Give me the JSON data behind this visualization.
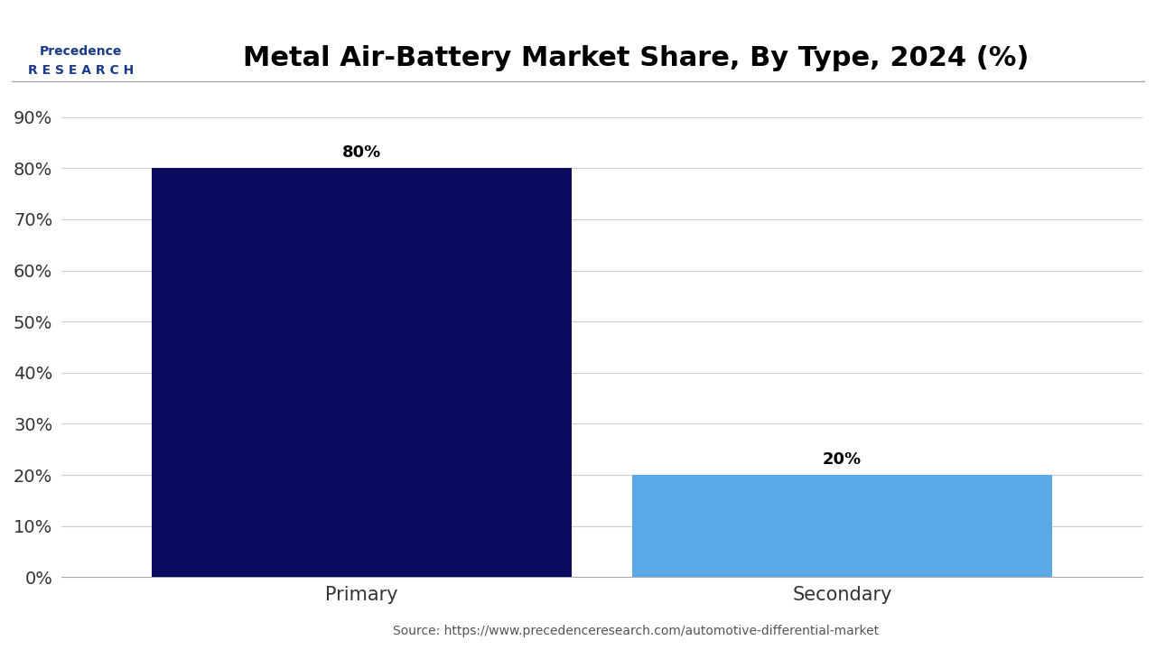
{
  "title": "Metal Air-Battery Market Share, By Type, 2024 (%)",
  "categories": [
    "Primary",
    "Secondary"
  ],
  "values": [
    80,
    20
  ],
  "bar_colors": [
    "#0a0a5e",
    "#5aa9e6"
  ],
  "ylabel": "",
  "yticks": [
    0,
    10,
    20,
    30,
    40,
    50,
    60,
    70,
    80,
    90
  ],
  "ytick_labels": [
    "0%",
    "10%",
    "20%",
    "30%",
    "40%",
    "50%",
    "60%",
    "70%",
    "80%",
    "90%"
  ],
  "ylim": [
    0,
    95
  ],
  "source_text": "Source: https://www.precedenceresearch.com/automotive-differential-market",
  "background_color": "#ffffff",
  "title_fontsize": 22,
  "label_fontsize": 14,
  "bar_label_fontsize": 13,
  "source_fontsize": 10,
  "bar_width": 0.35
}
